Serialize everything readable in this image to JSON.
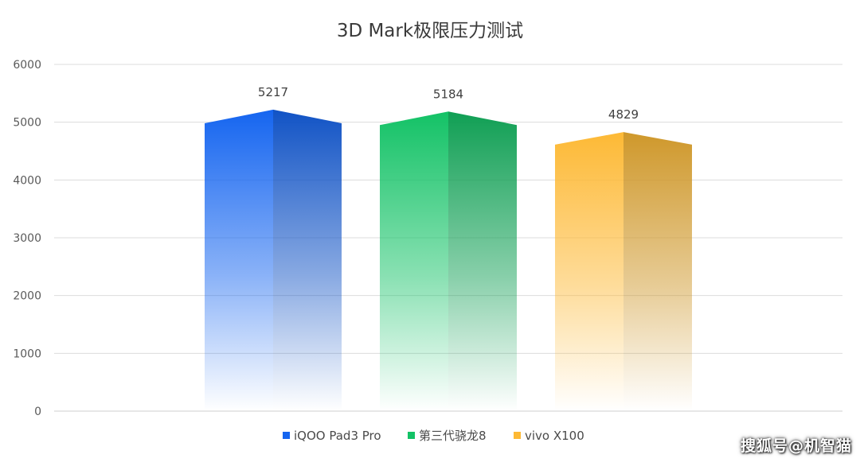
{
  "chart_data": {
    "type": "bar",
    "title": "3D Mark极限压力测试",
    "xlabel": "",
    "ylabel": "",
    "ylim": [
      0,
      6000
    ],
    "yticks": [
      0,
      1000,
      2000,
      3000,
      4000,
      5000,
      6000
    ],
    "grid": true,
    "legend_position": "bottom",
    "categories": [
      "iQOO Pad3 Pro",
      "第三代骁龙8",
      "vivo X100"
    ],
    "values": [
      5217,
      5184,
      4829
    ],
    "data_labels": [
      "5217",
      "5184",
      "4829"
    ],
    "colors": [
      "#1565f0",
      "#13c266",
      "#fdb935"
    ]
  },
  "watermark": "搜狐号@机智猫"
}
